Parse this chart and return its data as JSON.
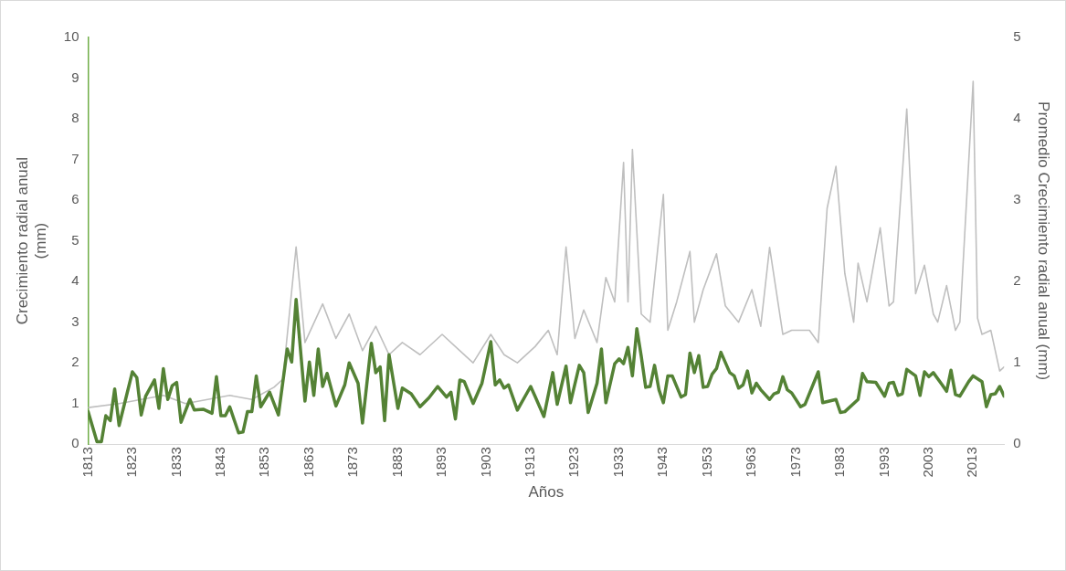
{
  "chart_data": {
    "type": "line",
    "xlabel": "Años",
    "ylabel": "Crecimiento radial anual (mm)",
    "y2label": "Promedio Crecimiento radial anual (mm)",
    "xlim": [
      1813,
      2020
    ],
    "xticks": [
      1813,
      1823,
      1833,
      1843,
      1853,
      1863,
      1873,
      1883,
      1893,
      1903,
      1913,
      1923,
      1933,
      1943,
      1953,
      1963,
      1973,
      1983,
      1993,
      2003,
      2013
    ],
    "ylim": [
      0,
      10
    ],
    "yticks": [
      0,
      1,
      2,
      3,
      4,
      5,
      6,
      7,
      8,
      9,
      10
    ],
    "y2lim": [
      0,
      5
    ],
    "y2ticks": [
      0,
      1,
      2,
      3,
      4,
      5
    ],
    "grid": false,
    "legend": false,
    "marker": "none",
    "line_style": "solid",
    "series": [
      {
        "color": "#bfbfbf",
        "x": [
          1813,
          1820,
          1825,
          1830,
          1835,
          1840,
          1845,
          1850,
          1855,
          1857,
          1860,
          1862,
          1866,
          1869,
          1872,
          1875,
          1878,
          1881,
          1884,
          1888,
          1893,
          1897,
          1900,
          1904,
          1907,
          1910,
          1914,
          1917,
          1919,
          1921,
          1923,
          1925,
          1928,
          1930,
          1932,
          1934,
          1935,
          1936,
          1938,
          1940,
          1943,
          1944,
          1946,
          1949,
          1950,
          1952,
          1955,
          1957,
          1960,
          1963,
          1965,
          1967,
          1970,
          1972,
          1976,
          1978,
          1980,
          1982,
          1984,
          1986,
          1987,
          1989,
          1992,
          1994,
          1995,
          1998,
          2000,
          2002,
          2004,
          2005,
          2007,
          2009,
          2010,
          2013,
          2014,
          2015,
          2017,
          2019,
          2020
        ],
        "values": [
          0.9,
          1,
          1.1,
          1.2,
          1,
          1.1,
          1.2,
          1.1,
          1.4,
          1.6,
          4.85,
          2.5,
          3.45,
          2.6,
          3.2,
          2.3,
          2.9,
          2.2,
          2.5,
          2.2,
          2.7,
          2.3,
          2,
          2.7,
          2.2,
          2,
          2.4,
          2.8,
          2.2,
          4.85,
          2.6,
          3.3,
          2.5,
          4.1,
          3.5,
          6.93,
          3.5,
          7.25,
          3.2,
          3,
          6.14,
          2.8,
          3.5,
          4.74,
          3,
          3.8,
          4.68,
          3.4,
          3,
          3.8,
          2.9,
          4.84,
          2.7,
          2.8,
          2.8,
          2.5,
          5.8,
          6.83,
          4.2,
          3,
          4.45,
          3.5,
          5.32,
          3.4,
          3.5,
          8.24,
          3.7,
          4.4,
          3.2,
          3,
          3.9,
          2.8,
          3,
          8.92,
          3.1,
          2.7,
          2.8,
          1.8,
          1.9
        ]
      },
      {
        "color": "#548235",
        "axis": "y2",
        "x": [
          1813,
          1815,
          1816,
          1817,
          1818,
          1819,
          1820,
          1823,
          1824,
          1825,
          1826,
          1828,
          1829,
          1830,
          1831,
          1832,
          1833,
          1834,
          1836,
          1837,
          1839,
          1841,
          1842,
          1843,
          1844,
          1845,
          1847,
          1848,
          1849,
          1850,
          1851,
          1852,
          1854,
          1856,
          1858,
          1859,
          1860,
          1862,
          1863,
          1864,
          1865,
          1866,
          1867,
          1869,
          1871,
          1872,
          1874,
          1875,
          1877,
          1878,
          1879,
          1880,
          1881,
          1883,
          1884,
          1886,
          1888,
          1890,
          1892,
          1894,
          1895,
          1896,
          1897,
          1898,
          1900,
          1902,
          1904,
          1905,
          1906,
          1907,
          1908,
          1910,
          1913,
          1914,
          1916,
          1918,
          1919,
          1921,
          1922,
          1924,
          1925,
          1926,
          1928,
          1929,
          1930,
          1932,
          1933,
          1934,
          1935,
          1936,
          1937,
          1938,
          1939,
          1940,
          1941,
          1942,
          1943,
          1944,
          1945,
          1947,
          1948,
          1949,
          1950,
          1951,
          1952,
          1953,
          1954,
          1955,
          1956,
          1958,
          1959,
          1960,
          1961,
          1962,
          1963,
          1964,
          1965,
          1967,
          1968,
          1969,
          1970,
          1971,
          1972,
          1974,
          1975,
          1978,
          1979,
          1982,
          1983,
          1984,
          1987,
          1988,
          1989,
          1991,
          1993,
          1994,
          1995,
          1996,
          1997,
          1998,
          2000,
          2001,
          2002,
          2003,
          2004,
          2006,
          2007,
          2008,
          2009,
          2010,
          2012,
          2013,
          2015,
          2016,
          2017,
          2018,
          2019,
          2020
        ],
        "values": [
          0.4,
          0.03,
          0.03,
          0.35,
          0.29,
          0.68,
          0.23,
          0.89,
          0.82,
          0.36,
          0.59,
          0.79,
          0.44,
          0.93,
          0.55,
          0.72,
          0.76,
          0.27,
          0.55,
          0.42,
          0.43,
          0.38,
          0.83,
          0.35,
          0.35,
          0.46,
          0.14,
          0.15,
          0.4,
          0.4,
          0.84,
          0.46,
          0.64,
          0.36,
          1.17,
          1.01,
          1.78,
          0.53,
          1.01,
          0.6,
          1.17,
          0.71,
          0.87,
          0.47,
          0.73,
          1,
          0.75,
          0.26,
          1.24,
          0.88,
          0.95,
          0.29,
          1.1,
          0.44,
          0.69,
          0.62,
          0.46,
          0.57,
          0.71,
          0.58,
          0.64,
          0.31,
          0.79,
          0.77,
          0.5,
          0.75,
          1.26,
          0.73,
          0.79,
          0.69,
          0.73,
          0.42,
          0.71,
          0.59,
          0.34,
          0.88,
          0.49,
          0.96,
          0.51,
          0.97,
          0.88,
          0.39,
          0.75,
          1.17,
          0.51,
          0.99,
          1.05,
          0.99,
          1.19,
          0.84,
          1.42,
          1.08,
          0.7,
          0.71,
          0.97,
          0.67,
          0.51,
          0.84,
          0.84,
          0.58,
          0.61,
          1.12,
          0.88,
          1.09,
          0.7,
          0.71,
          0.86,
          0.93,
          1.13,
          0.88,
          0.84,
          0.69,
          0.73,
          0.9,
          0.63,
          0.75,
          0.67,
          0.55,
          0.62,
          0.64,
          0.83,
          0.67,
          0.63,
          0.46,
          0.49,
          0.89,
          0.51,
          0.55,
          0.39,
          0.4,
          0.55,
          0.87,
          0.77,
          0.76,
          0.59,
          0.75,
          0.76,
          0.6,
          0.62,
          0.92,
          0.84,
          0.6,
          0.89,
          0.83,
          0.88,
          0.73,
          0.65,
          0.91,
          0.61,
          0.59,
          0.77,
          0.84,
          0.77,
          0.46,
          0.61,
          0.62,
          0.71,
          0.59
        ]
      }
    ]
  }
}
